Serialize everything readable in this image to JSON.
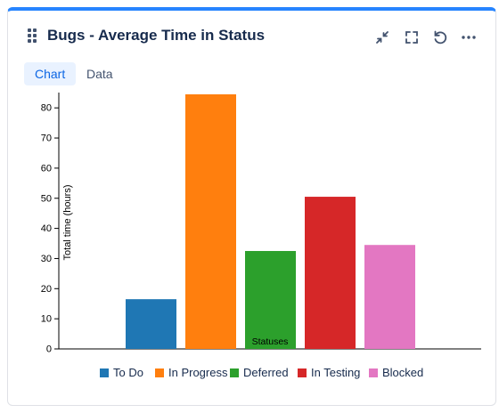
{
  "widget": {
    "title": "Bugs - Average Time in Status",
    "tabs": [
      {
        "label": "Chart",
        "active": true
      },
      {
        "label": "Data",
        "active": false
      }
    ],
    "toolbar_icons": [
      "collapse-icon",
      "fullscreen-icon",
      "refresh-icon",
      "more-icon"
    ],
    "accent": "#2684ff"
  },
  "chart_data": {
    "type": "bar",
    "categories": [
      "To Do",
      "In Progress",
      "Deferred",
      "In Testing",
      "Blocked"
    ],
    "values": [
      16.5,
      84.5,
      32.5,
      50.5,
      34.5
    ],
    "colors": [
      "#1f77b4",
      "#ff7f0e",
      "#2ca02c",
      "#d62728",
      "#e377c2"
    ],
    "xlabel": "Statuses",
    "ylabel": "Total time (hours)",
    "ylim": [
      0,
      85
    ],
    "yticks": [
      0,
      10,
      20,
      30,
      40,
      50,
      60,
      70,
      80
    ],
    "legend_position": "bottom",
    "grid": false
  }
}
